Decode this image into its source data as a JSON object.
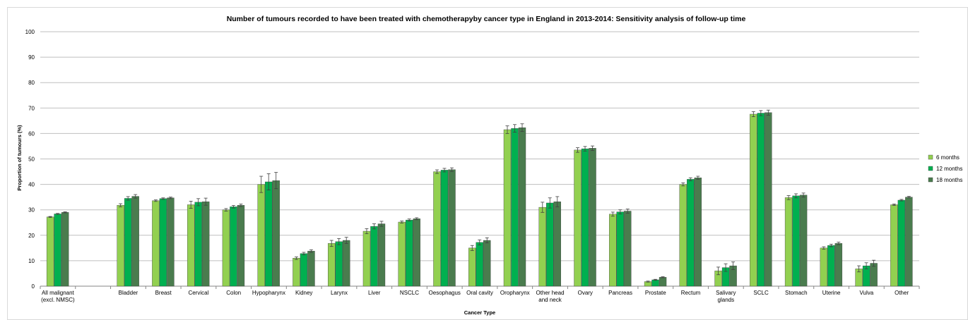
{
  "chart_data": {
    "type": "bar",
    "title": "Number of tumours recorded to have been treated with chemotherapyby cancer type in England in 2013-2014: Sensitivity analysis of follow-up time",
    "xlabel": "Cancer Type",
    "ylabel": "Proportion of tumours (%)",
    "ylim": [
      0,
      100
    ],
    "yticks": [
      0,
      10,
      20,
      30,
      40,
      50,
      60,
      70,
      80,
      90,
      100
    ],
    "grid": true,
    "legend_position": "right",
    "categories": [
      [
        "All malignant",
        "(excl. NMSC)"
      ],
      [
        ""
      ],
      [
        "Bladder"
      ],
      [
        "Breast"
      ],
      [
        "Cervical"
      ],
      [
        "Colon"
      ],
      [
        "Hypopharynx"
      ],
      [
        "Kidney"
      ],
      [
        "Larynx"
      ],
      [
        "Liver"
      ],
      [
        "NSCLC"
      ],
      [
        "Oesophagus"
      ],
      [
        "Oral cavity"
      ],
      [
        "Oropharynx"
      ],
      [
        "Other head",
        "and neck"
      ],
      [
        "Ovary"
      ],
      [
        "Pancreas"
      ],
      [
        "Prostate"
      ],
      [
        "Rectum"
      ],
      [
        "Salivary",
        "glands"
      ],
      [
        "SCLC"
      ],
      [
        "Stomach"
      ],
      [
        "Uterine"
      ],
      [
        "Vulva"
      ],
      [
        "Other"
      ]
    ],
    "series": [
      {
        "name": "6 months",
        "color": "#92d050",
        "values": [
          27.2,
          null,
          31.8,
          33.6,
          32.0,
          30.0,
          40.0,
          11.0,
          16.8,
          21.6,
          25.2,
          45.0,
          15.0,
          61.5,
          31.0,
          53.5,
          28.3,
          1.8,
          40.0,
          6.0,
          67.6,
          34.8,
          15.0,
          6.8,
          32.0
        ],
        "errors": [
          0.2,
          null,
          0.6,
          0.3,
          1.4,
          0.5,
          3.2,
          0.5,
          1.2,
          1.0,
          0.4,
          0.7,
          1.0,
          1.5,
          2.0,
          0.9,
          0.8,
          0.2,
          0.6,
          1.5,
          1.0,
          0.8,
          0.5,
          1.2,
          0.3
        ]
      },
      {
        "name": "12 months",
        "color": "#00b050",
        "values": [
          28.4,
          null,
          34.5,
          34.4,
          33.0,
          31.2,
          41.0,
          12.8,
          17.5,
          23.5,
          26.0,
          45.6,
          17.2,
          62.0,
          32.7,
          54.0,
          29.2,
          2.5,
          42.0,
          7.3,
          68.0,
          35.5,
          16.0,
          8.0,
          33.8
        ],
        "errors": [
          0.2,
          null,
          0.7,
          0.3,
          1.4,
          0.5,
          3.2,
          0.5,
          1.2,
          1.0,
          0.4,
          0.7,
          1.0,
          1.5,
          2.0,
          0.9,
          0.8,
          0.2,
          0.6,
          1.5,
          1.0,
          0.8,
          0.5,
          1.2,
          0.3
        ]
      },
      {
        "name": "18 months",
        "color": "#4a7c4e",
        "values": [
          29.0,
          null,
          35.3,
          34.7,
          33.2,
          31.8,
          41.5,
          13.8,
          18.0,
          24.5,
          26.5,
          45.8,
          18.0,
          62.3,
          33.2,
          54.2,
          29.5,
          3.5,
          42.6,
          8.0,
          68.2,
          35.8,
          16.8,
          9.0,
          35.0
        ],
        "errors": [
          0.2,
          null,
          0.7,
          0.3,
          1.4,
          0.5,
          3.2,
          0.5,
          1.2,
          1.0,
          0.4,
          0.7,
          1.0,
          1.5,
          2.0,
          0.9,
          0.8,
          0.2,
          0.6,
          1.5,
          1.0,
          0.8,
          0.5,
          1.2,
          0.3
        ]
      }
    ]
  }
}
